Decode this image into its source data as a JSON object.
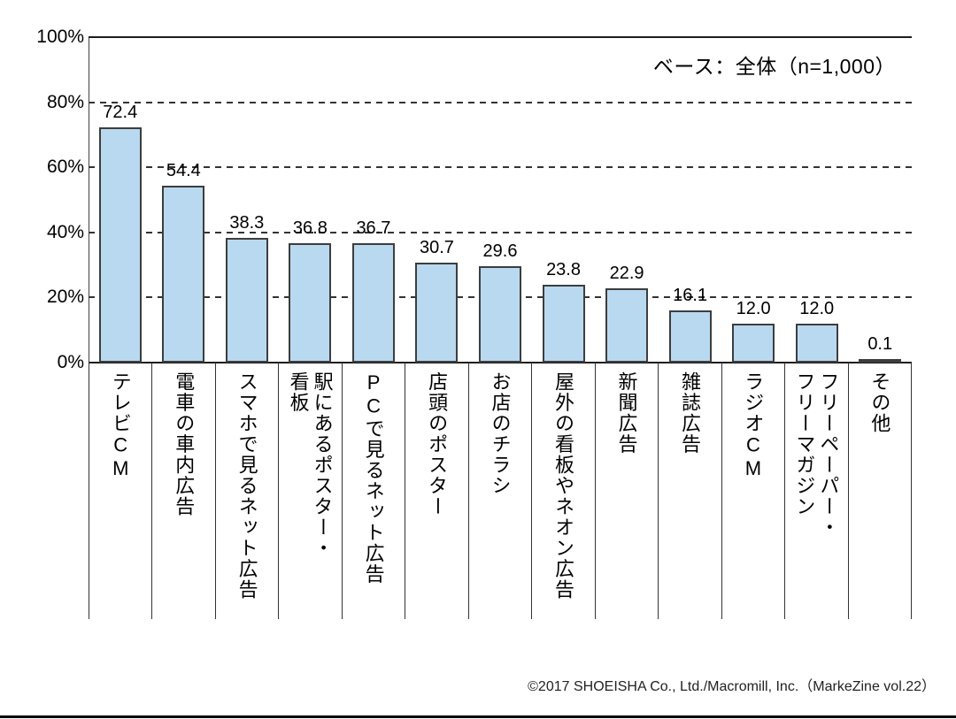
{
  "chart_data": {
    "type": "bar",
    "title": "",
    "base_note": "ベース：全体（n=1,000）",
    "ylim": [
      0,
      100
    ],
    "grid": "dashed-horizontal",
    "legend_position": "none",
    "yticks": [
      {
        "value": 100,
        "label": "100%"
      },
      {
        "value": 80,
        "label": "80%"
      },
      {
        "value": 60,
        "label": "60%"
      },
      {
        "value": 40,
        "label": "40%"
      },
      {
        "value": 20,
        "label": "20%"
      },
      {
        "value": 0,
        "label": "0%"
      }
    ],
    "bars": [
      {
        "category": "テレビCM",
        "value": 72.4,
        "value_label": "72.4"
      },
      {
        "category": "電車の車内広告",
        "value": 54.4,
        "value_label": "54.4"
      },
      {
        "category": "スマホで見るネット広告",
        "value": 38.3,
        "value_label": "38.3"
      },
      {
        "category": "駅にあるポスター・\n看板",
        "value": 36.8,
        "value_label": "36.8"
      },
      {
        "category": "PCで見るネット広告",
        "value": 36.7,
        "value_label": "36.7"
      },
      {
        "category": "店頭のポスター",
        "value": 30.7,
        "value_label": "30.7"
      },
      {
        "category": "お店のチラシ",
        "value": 29.6,
        "value_label": "29.6"
      },
      {
        "category": "屋外の看板やネオン広告",
        "value": 23.8,
        "value_label": "23.8"
      },
      {
        "category": "新聞広告",
        "value": 22.9,
        "value_label": "22.9"
      },
      {
        "category": "雑誌広告",
        "value": 16.1,
        "value_label": "16.1"
      },
      {
        "category": "ラジオCM",
        "value": 12.0,
        "value_label": "12.0"
      },
      {
        "category": "フリーペーパー・\nフリーマガジン",
        "value": 12.0,
        "value_label": "12.0"
      },
      {
        "category": "その他",
        "value": 0.1,
        "value_label": "0.1"
      }
    ],
    "colors": {
      "bar_fill": "#b9d9f0",
      "bar_border": "#3d3d3d",
      "grid": "#333333",
      "text": "#000000"
    },
    "footer": "©2017 SHOEISHA Co., Ltd./Macromill, Inc.（MarkeZine vol.22）"
  }
}
